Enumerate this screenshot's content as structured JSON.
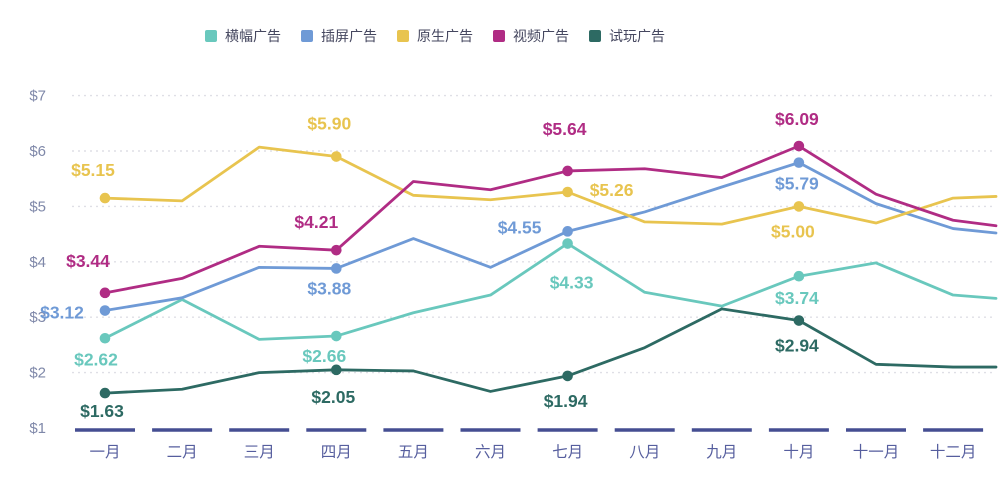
{
  "legend": {
    "items": [
      {
        "id": "banner",
        "label": "横幅广告",
        "color": "#69c8bd"
      },
      {
        "id": "interstitial",
        "label": "插屏广告",
        "color": "#6f9ad6"
      },
      {
        "id": "native",
        "label": "原生广告",
        "color": "#e8c44f"
      },
      {
        "id": "video",
        "label": "视频广告",
        "color": "#b02c84"
      },
      {
        "id": "playable",
        "label": "试玩广告",
        "color": "#2d6a63"
      }
    ]
  },
  "chart_data": {
    "type": "line",
    "title": "",
    "legend_position": "top",
    "grid": "dotted-horizontal",
    "x_categories": [
      "一月",
      "二月",
      "三月",
      "四月",
      "五月",
      "六月",
      "七月",
      "八月",
      "九月",
      "十月",
      "十一月",
      "十二月"
    ],
    "y_axis": {
      "min": 1,
      "max": 7,
      "ticks": [
        {
          "value": 1,
          "label": "$1"
        },
        {
          "value": 2,
          "label": "$2"
        },
        {
          "value": 3,
          "label": "$3"
        },
        {
          "value": 4,
          "label": "$4"
        },
        {
          "value": 5,
          "label": "$5"
        },
        {
          "value": 6,
          "label": "$6"
        },
        {
          "value": 7,
          "label": "$7"
        }
      ],
      "gridline_values": [
        2,
        3,
        4,
        5,
        6,
        7
      ]
    },
    "series": [
      {
        "id": "banner",
        "name": "横幅广告",
        "color": "#69c8bd",
        "values": [
          2.62,
          3.32,
          2.6,
          2.66,
          3.08,
          3.4,
          4.33,
          3.45,
          3.2,
          3.74,
          3.98,
          3.4
        ],
        "right_edge_value": 3.34,
        "labeled_points": [
          {
            "month": 0,
            "text": "$2.62",
            "dx": -9,
            "dy": 27
          },
          {
            "month": 3,
            "text": "$2.66",
            "dx": -12,
            "dy": 26
          },
          {
            "month": 6,
            "text": "$4.33",
            "dx": 4,
            "dy": 45
          },
          {
            "month": 9,
            "text": "$3.74",
            "dx": -2,
            "dy": 28
          }
        ]
      },
      {
        "id": "interstitial",
        "name": "插屏广告",
        "color": "#6f9ad6",
        "values": [
          3.12,
          3.35,
          3.9,
          3.88,
          4.42,
          3.9,
          4.55,
          4.9,
          5.35,
          5.79,
          5.05,
          4.6
        ],
        "right_edge_value": 4.52,
        "labeled_points": [
          {
            "month": 0,
            "text": "$3.12",
            "dx": -43,
            "dy": 8
          },
          {
            "month": 3,
            "text": "$3.88",
            "dx": -7,
            "dy": 26
          },
          {
            "month": 6,
            "text": "$4.55",
            "dx": -48,
            "dy": 2
          },
          {
            "month": 9,
            "text": "$5.79",
            "dx": -2,
            "dy": 27
          }
        ]
      },
      {
        "id": "native",
        "name": "原生广告",
        "color": "#e8c44f",
        "values": [
          5.15,
          5.1,
          6.07,
          5.9,
          5.2,
          5.12,
          5.26,
          4.72,
          4.68,
          5.0,
          4.7,
          5.15
        ],
        "right_edge_value": 5.18,
        "labeled_points": [
          {
            "month": 0,
            "text": "$5.15",
            "dx": -12,
            "dy": -22
          },
          {
            "month": 3,
            "text": "$5.90",
            "dx": -7,
            "dy": -27
          },
          {
            "month": 6,
            "text": "$5.26",
            "dx": 44,
            "dy": 4
          },
          {
            "month": 9,
            "text": "$5.00",
            "dx": -6,
            "dy": 31
          }
        ]
      },
      {
        "id": "video",
        "name": "视频广告",
        "color": "#b02c84",
        "values": [
          3.44,
          3.7,
          4.28,
          4.21,
          5.45,
          5.3,
          5.64,
          5.68,
          5.52,
          6.09,
          5.22,
          4.75
        ],
        "right_edge_value": 4.65,
        "labeled_points": [
          {
            "month": 0,
            "text": "$3.44",
            "dx": -17,
            "dy": -26
          },
          {
            "month": 3,
            "text": "$4.21",
            "dx": -20,
            "dy": -22
          },
          {
            "month": 6,
            "text": "$5.64",
            "dx": -3,
            "dy": -36
          },
          {
            "month": 9,
            "text": "$6.09",
            "dx": -2,
            "dy": -21
          }
        ]
      },
      {
        "id": "playable",
        "name": "试玩广告",
        "color": "#2d6a63",
        "values": [
          1.63,
          1.7,
          2.0,
          2.05,
          2.03,
          1.66,
          1.94,
          2.45,
          3.15,
          2.94,
          2.15,
          2.1
        ],
        "right_edge_value": 2.1,
        "labeled_points": [
          {
            "month": 0,
            "text": "$1.63",
            "dx": -3,
            "dy": 24
          },
          {
            "month": 3,
            "text": "$2.05",
            "dx": -3,
            "dy": 33
          },
          {
            "month": 6,
            "text": "$1.94",
            "dx": -2,
            "dy": 31
          },
          {
            "month": 9,
            "text": "$2.94",
            "dx": -2,
            "dy": 31
          }
        ]
      }
    ]
  }
}
